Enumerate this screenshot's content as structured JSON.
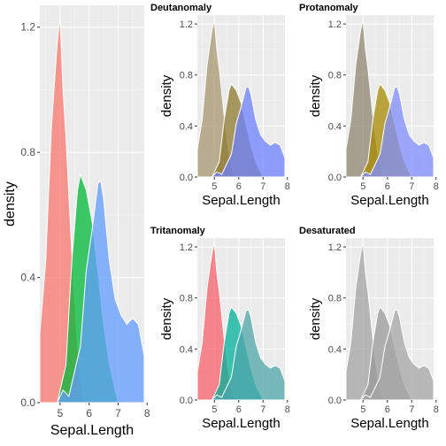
{
  "chart_data": [
    {
      "panel": "main",
      "type": "area",
      "title": "",
      "xlabel": "Sepal.Length",
      "ylabel": "density",
      "xlim": [
        4.3,
        7.9
      ],
      "ylim": [
        0,
        1.27
      ],
      "xticks": [
        5,
        6,
        7,
        8
      ],
      "yticks": [
        0.0,
        0.4,
        0.8,
        1.2
      ],
      "ytick_labels": [
        "0.0",
        "0.4",
        "0.8",
        "1.2"
      ],
      "series": [
        {
          "color": "#F8766D",
          "x": [
            4.3,
            4.5,
            4.7,
            4.9,
            5.0,
            5.1,
            5.2,
            5.4,
            5.6,
            5.8
          ],
          "y": [
            0.22,
            0.45,
            0.88,
            1.15,
            1.23,
            1.0,
            0.85,
            0.48,
            0.18,
            0.0
          ]
        },
        {
          "color": "#00BA38",
          "x": [
            4.9,
            5.0,
            5.2,
            5.4,
            5.6,
            5.7,
            5.9,
            6.1,
            6.3,
            6.5,
            6.7,
            7.0
          ],
          "y": [
            0.0,
            0.04,
            0.12,
            0.45,
            0.68,
            0.73,
            0.68,
            0.58,
            0.42,
            0.25,
            0.12,
            0.0
          ]
        },
        {
          "color": "#619CFF",
          "x": [
            4.9,
            5.1,
            5.3,
            5.5,
            5.7,
            5.9,
            6.1,
            6.3,
            6.4,
            6.5,
            6.7,
            6.9,
            7.1,
            7.3,
            7.5,
            7.7,
            7.9
          ],
          "y": [
            0.0,
            0.04,
            0.02,
            0.1,
            0.18,
            0.42,
            0.55,
            0.7,
            0.71,
            0.65,
            0.45,
            0.33,
            0.28,
            0.25,
            0.27,
            0.25,
            0.15
          ]
        }
      ]
    },
    {
      "panel": "deutanomaly",
      "type": "area",
      "title": "Deutanomaly",
      "xlabel": "Sepal.Length",
      "ylabel": "density",
      "xlim": [
        4.3,
        7.9
      ],
      "ylim": [
        0,
        1.27
      ],
      "xticks": [
        5,
        6,
        7,
        8
      ],
      "yticks": [
        0.0,
        0.4,
        0.8,
        1.2
      ],
      "ytick_labels": [
        "0.0",
        "0.4",
        "0.8",
        "1.2"
      ],
      "series_colors": [
        "#A8976F",
        "#8E7A2E",
        "#6E82FF"
      ]
    },
    {
      "panel": "protanomaly",
      "type": "area",
      "title": "Protanomaly",
      "xlabel": "Sepal.Length",
      "ylabel": "density",
      "xlim": [
        4.3,
        7.9
      ],
      "ylim": [
        0,
        1.27
      ],
      "xticks": [
        5,
        6,
        7,
        8
      ],
      "yticks": [
        0.0,
        0.4,
        0.8,
        1.2
      ],
      "ytick_labels": [
        "0.0",
        "0.4",
        "0.8",
        "1.2"
      ],
      "series_colors": [
        "#8F8670",
        "#A78A00",
        "#7F8DFF"
      ]
    },
    {
      "panel": "tritanomaly",
      "type": "area",
      "title": "Tritanomaly",
      "xlabel": "Sepal.Length",
      "ylabel": "density",
      "xlim": [
        4.3,
        7.9
      ],
      "ylim": [
        0,
        1.27
      ],
      "xticks": [
        5,
        6,
        7,
        8
      ],
      "yticks": [
        0.0,
        0.4,
        0.8,
        1.2
      ],
      "ytick_labels": [
        "0.0",
        "0.4",
        "0.8",
        "1.2"
      ],
      "series_colors": [
        "#F8606C",
        "#00B29A",
        "#4FA5A8"
      ]
    },
    {
      "panel": "desaturated",
      "type": "area",
      "title": "Desaturated",
      "xlabel": "Sepal.Length",
      "ylabel": "density",
      "xlim": [
        4.3,
        7.9
      ],
      "ylim": [
        0,
        1.27
      ],
      "xticks": [
        5,
        6,
        7,
        8
      ],
      "yticks": [
        0.0,
        0.4,
        0.8,
        1.2
      ],
      "ytick_labels": [
        "0.0",
        "0.4",
        "0.8",
        "1.2"
      ],
      "series_colors": [
        "#A3A3A3",
        "#9A9A9A",
        "#A6A6A6"
      ]
    }
  ]
}
